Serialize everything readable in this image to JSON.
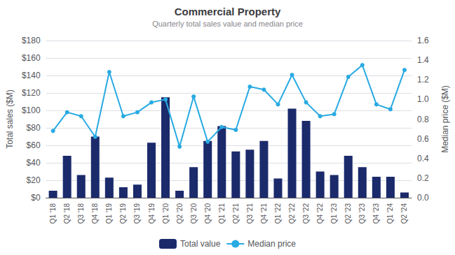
{
  "chart_data": {
    "type": "bar",
    "title": "Commercial Property",
    "subtitle": "Quarterly total sales value and median price",
    "ylabel": "Total sales ($M)",
    "y2label": "Median price ($M)",
    "categories": [
      "Q1 '18",
      "Q2 '18",
      "Q3 '18",
      "Q4 '18",
      "Q1 '19",
      "Q2 '19",
      "Q3 '19",
      "Q4 '19",
      "Q1 '20",
      "Q2 '20",
      "Q3 '20",
      "Q4 '20",
      "Q1 '21",
      "Q2 '21",
      "Q3 '21",
      "Q4 '21",
      "Q1 '22",
      "Q2 '22",
      "Q3 '22",
      "Q4 '22",
      "Q1 '23",
      "Q2 '23",
      "Q3 '23",
      "Q4 '23",
      "Q1 '24",
      "Q2 '24"
    ],
    "series": [
      {
        "name": "Total value",
        "type": "bar",
        "color": "#1b2a6b",
        "values": [
          8,
          48,
          26,
          70,
          23,
          12,
          15,
          63,
          115,
          8,
          35,
          65,
          82,
          53,
          55,
          65,
          22,
          102,
          88,
          30,
          26,
          48,
          35,
          24,
          24,
          6
        ]
      },
      {
        "name": "Median price",
        "type": "line",
        "color": "#29aae2",
        "marker": "circle",
        "axis": "y2",
        "values": [
          0.68,
          0.87,
          0.83,
          0.62,
          1.28,
          0.83,
          0.87,
          0.97,
          1.0,
          0.52,
          1.03,
          0.57,
          0.72,
          0.69,
          1.13,
          1.1,
          0.95,
          1.25,
          0.97,
          0.83,
          0.85,
          1.23,
          1.35,
          0.95,
          0.9,
          1.3
        ]
      }
    ],
    "ylim": [
      0,
      180
    ],
    "yticks": [
      {
        "value": 0,
        "label": "$0"
      },
      {
        "value": 20,
        "label": "$20"
      },
      {
        "value": 40,
        "label": "$40"
      },
      {
        "value": 60,
        "label": "$60"
      },
      {
        "value": 80,
        "label": "$80"
      },
      {
        "value": 100,
        "label": "$100"
      },
      {
        "value": 120,
        "label": "$120"
      },
      {
        "value": 140,
        "label": "$140"
      },
      {
        "value": 160,
        "label": "$160"
      },
      {
        "value": 180,
        "label": "$180"
      }
    ],
    "y2lim": [
      0,
      1.6
    ],
    "y2ticks": [
      {
        "value": 0,
        "label": "0.0"
      },
      0.2,
      0.4,
      0.6,
      0.8,
      {
        "value": 1.0,
        "label": "1.0"
      },
      1.2,
      1.4,
      1.6
    ],
    "grid": true,
    "legend": "bottom"
  }
}
